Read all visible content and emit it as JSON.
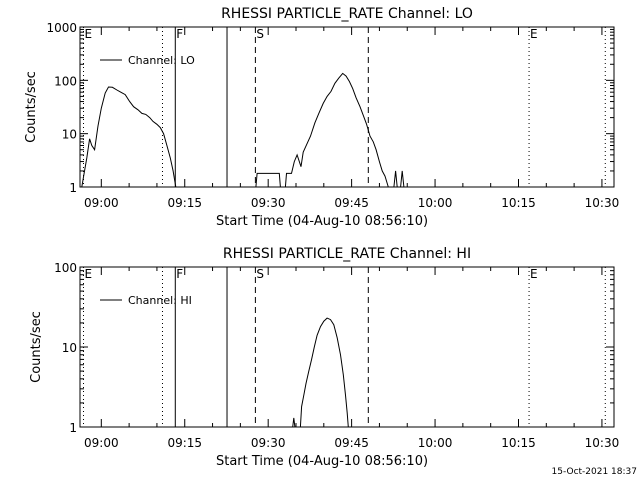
{
  "footer_timestamp": "15-Oct-2021 18:37",
  "colors": {
    "background": "#ffffff",
    "ink": "#000000"
  },
  "chart_data": [
    {
      "type": "line",
      "title": "RHESSI PARTICLE_RATE Channel: LO",
      "xlabel": "Start Time (04-Aug-10 08:56:10)",
      "ylabel": "Counts/sec",
      "y_scale": "log",
      "ylim": [
        1,
        1000
      ],
      "xlim": [
        56.17,
        152.17
      ],
      "x_tick_labels": [
        "09:00",
        "09:15",
        "09:30",
        "09:45",
        "10:00",
        "10:15",
        "10:30"
      ],
      "x_tick_minutes": [
        60,
        75,
        90,
        105,
        120,
        135,
        150
      ],
      "y_tick_labels": [
        "1",
        "10",
        "100",
        "1000"
      ],
      "y_tick_values": [
        1,
        10,
        100,
        1000
      ],
      "grid": false,
      "legend": {
        "label": "Channel: LO",
        "placement": "top-left"
      },
      "markers": [
        {
          "label": "E",
          "minute": 56.8,
          "style": "dotted"
        },
        {
          "label": "F",
          "minute": 73.3,
          "style": "solid"
        },
        {
          "label": "S",
          "minute": 87.7,
          "style": "dashed"
        },
        {
          "label": "E",
          "minute": 136.9,
          "style": "dotted"
        },
        {
          "label": "",
          "minute": 71.0,
          "style": "dotted"
        },
        {
          "label": "",
          "minute": 82.6,
          "style": "solid"
        },
        {
          "label": "",
          "minute": 108.0,
          "style": "dashed"
        },
        {
          "label": "",
          "minute": 150.6,
          "style": "dotted"
        }
      ],
      "series": [
        {
          "name": "Channel: LO",
          "segments": [
            [
              [
                56.5,
                1
              ],
              [
                56.9,
                1.8
              ],
              [
                57.4,
                3.5
              ],
              [
                57.9,
                8
              ],
              [
                58.3,
                6
              ],
              [
                58.8,
                5
              ],
              [
                59.4,
                14
              ],
              [
                60.0,
                30
              ],
              [
                60.7,
                58
              ],
              [
                61.3,
                75
              ],
              [
                62.0,
                74
              ],
              [
                62.8,
                66
              ],
              [
                63.5,
                60
              ],
              [
                64.3,
                54
              ],
              [
                65.1,
                40
              ],
              [
                65.8,
                32
              ],
              [
                66.6,
                28
              ],
              [
                67.3,
                24
              ],
              [
                68.0,
                23
              ],
              [
                68.7,
                20
              ],
              [
                69.3,
                17
              ],
              [
                70.0,
                15
              ],
              [
                70.6,
                13
              ],
              [
                71.2,
                10
              ],
              [
                71.8,
                6
              ],
              [
                72.4,
                3.5
              ],
              [
                72.9,
                2
              ],
              [
                73.4,
                1
              ]
            ],
            [
              [
                87.8,
                1
              ],
              [
                88.0,
                1.8
              ],
              [
                92.0,
                1.8
              ],
              [
                92.2,
                1
              ]
            ],
            [
              [
                93.1,
                1
              ],
              [
                93.3,
                1.8
              ],
              [
                94.2,
                1.8
              ],
              [
                94.3,
                2
              ],
              [
                94.7,
                3
              ],
              [
                95.2,
                4
              ],
              [
                95.9,
                2.4
              ],
              [
                96.3,
                4.5
              ],
              [
                97.0,
                6.5
              ],
              [
                97.6,
                9
              ],
              [
                98.4,
                16
              ],
              [
                99.1,
                24
              ],
              [
                99.9,
                37
              ],
              [
                100.6,
                50
              ],
              [
                101.3,
                62
              ],
              [
                102.0,
                88
              ],
              [
                102.7,
                110
              ],
              [
                103.4,
                135
              ],
              [
                104.0,
                120
              ],
              [
                104.6,
                95
              ],
              [
                105.2,
                70
              ],
              [
                105.8,
                47
              ],
              [
                106.5,
                32
              ],
              [
                107.1,
                22
              ],
              [
                107.7,
                15
              ],
              [
                108.3,
                9
              ],
              [
                108.9,
                7
              ],
              [
                109.4,
                5
              ],
              [
                110.0,
                3
              ],
              [
                110.5,
                2
              ],
              [
                111.0,
                1.6
              ],
              [
                111.6,
                1
              ]
            ],
            [
              [
                112.6,
                1
              ],
              [
                112.9,
                2
              ],
              [
                113.2,
                1
              ]
            ],
            [
              [
                113.8,
                1
              ],
              [
                114.1,
                2
              ],
              [
                114.4,
                1
              ]
            ]
          ]
        }
      ]
    },
    {
      "type": "line",
      "title": "RHESSI PARTICLE_RATE Channel: HI",
      "xlabel": "Start Time (04-Aug-10 08:56:10)",
      "ylabel": "Counts/sec",
      "y_scale": "log",
      "ylim": [
        1,
        100
      ],
      "xlim": [
        56.17,
        152.17
      ],
      "x_tick_labels": [
        "09:00",
        "09:15",
        "09:30",
        "09:45",
        "10:00",
        "10:15",
        "10:30"
      ],
      "x_tick_minutes": [
        60,
        75,
        90,
        105,
        120,
        135,
        150
      ],
      "y_tick_labels": [
        "1",
        "10",
        "100"
      ],
      "y_tick_values": [
        1,
        10,
        100
      ],
      "grid": false,
      "legend": {
        "label": "Channel: HI",
        "placement": "top-left"
      },
      "markers": [
        {
          "label": "E",
          "minute": 56.8,
          "style": "dotted"
        },
        {
          "label": "F",
          "minute": 73.3,
          "style": "solid"
        },
        {
          "label": "S",
          "minute": 87.7,
          "style": "dashed"
        },
        {
          "label": "E",
          "minute": 136.9,
          "style": "dotted"
        },
        {
          "label": "",
          "minute": 71.0,
          "style": "dotted"
        },
        {
          "label": "",
          "minute": 82.6,
          "style": "solid"
        },
        {
          "label": "",
          "minute": 108.0,
          "style": "dashed"
        },
        {
          "label": "",
          "minute": 150.6,
          "style": "dotted"
        }
      ],
      "series": [
        {
          "name": "Channel: HI",
          "segments": [
            [
              [
                94.4,
                1
              ],
              [
                94.6,
                1.3
              ],
              [
                94.8,
                1
              ]
            ],
            [
              [
                95.8,
                1
              ],
              [
                96.0,
                1.8
              ],
              [
                96.4,
                2.5
              ],
              [
                96.8,
                3.5
              ],
              [
                97.3,
                5
              ],
              [
                97.8,
                7
              ],
              [
                98.3,
                10
              ],
              [
                98.8,
                14
              ],
              [
                99.4,
                18
              ],
              [
                100.0,
                21
              ],
              [
                100.6,
                23
              ],
              [
                101.2,
                22
              ],
              [
                101.8,
                19
              ],
              [
                102.4,
                13
              ],
              [
                103.0,
                8
              ],
              [
                103.5,
                4.5
              ],
              [
                103.9,
                2.5
              ],
              [
                104.2,
                1.5
              ],
              [
                104.4,
                1
              ]
            ]
          ]
        }
      ]
    }
  ]
}
